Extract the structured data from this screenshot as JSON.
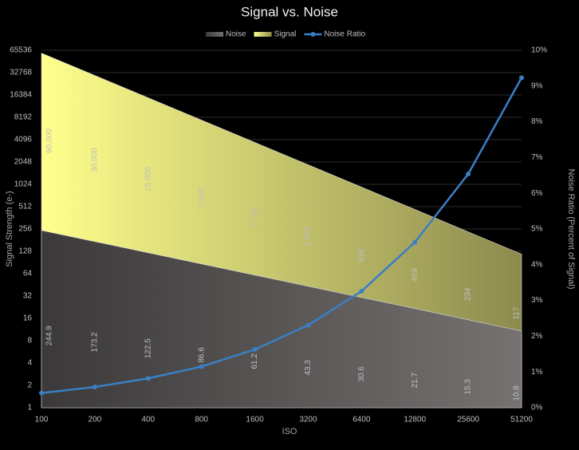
{
  "chart_data": {
    "type": "area",
    "title": "Signal vs. Noise",
    "x_label": "ISO",
    "y_label": "Signal Strength (e-)",
    "y2_label": "Noise Ratio (Percent of Signal)",
    "categories": [
      "100",
      "200",
      "400",
      "800",
      "1600",
      "3200",
      "6400",
      "12800",
      "25600",
      "51200"
    ],
    "y_scale": "log",
    "log_base": 2,
    "ylim": [
      1,
      65536
    ],
    "yticks": [
      1,
      2,
      4,
      8,
      16,
      32,
      64,
      128,
      256,
      512,
      1024,
      2048,
      4096,
      8192,
      16384,
      32768,
      65536
    ],
    "y2lim": [
      0,
      10
    ],
    "y2ticks": [
      {
        "value": 0,
        "label": "0%"
      },
      {
        "value": 1,
        "label": "1%"
      },
      {
        "value": 2,
        "label": "2%"
      },
      {
        "value": 3,
        "label": "3%"
      },
      {
        "value": 4,
        "label": "4%"
      },
      {
        "value": 5,
        "label": "5%"
      },
      {
        "value": 6,
        "label": "6%"
      },
      {
        "value": 7,
        "label": "7%"
      },
      {
        "value": 8,
        "label": "8%"
      },
      {
        "value": 9,
        "label": "9%"
      },
      {
        "value": 10,
        "label": "10%"
      }
    ],
    "grid": true,
    "legend": "top",
    "series": [
      {
        "name": "Noise",
        "type": "area",
        "colors": [
          "#3b3939",
          "#767271"
        ],
        "values": [
          244.9,
          173.2,
          122.5,
          86.6,
          61.2,
          43.3,
          30.6,
          21.7,
          15.3,
          10.8
        ]
      },
      {
        "name": "Signal",
        "type": "area",
        "colors": [
          "#ffff8c",
          "#8c8a4e"
        ],
        "values": [
          60000,
          30000,
          15000,
          7500,
          3750,
          1875,
          938,
          469,
          234,
          117
        ],
        "value_labels": [
          "60,000",
          "30,000",
          "15,000",
          "7,500",
          "3,750",
          "1,875",
          "938",
          "469",
          "234",
          "117"
        ]
      },
      {
        "name": "Noise Ratio",
        "type": "line",
        "axis": "y2",
        "color": "#3a7fc4",
        "values": [
          0.41,
          0.58,
          0.82,
          1.15,
          1.63,
          2.31,
          3.26,
          4.63,
          6.54,
          9.23
        ]
      }
    ]
  }
}
